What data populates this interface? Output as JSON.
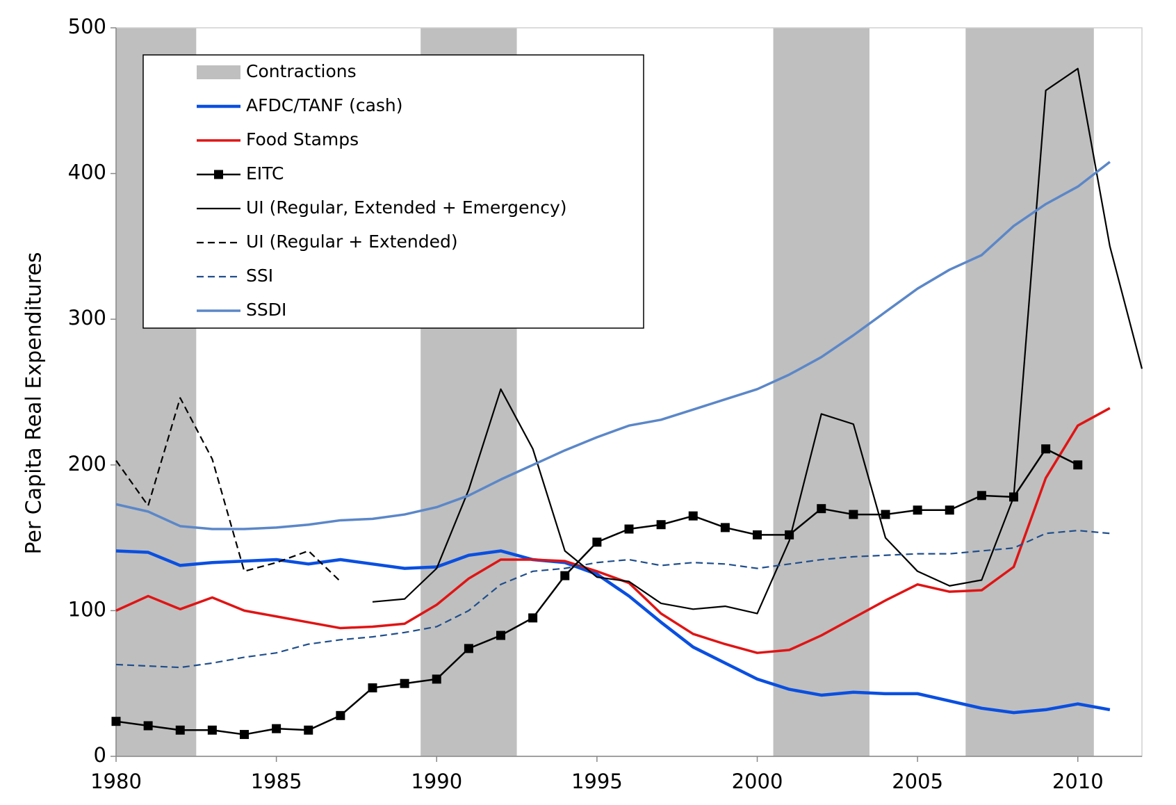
{
  "chart_data": {
    "type": "line",
    "y_label": "Per Capita Real Expenditures",
    "x": [
      1980,
      1981,
      1982,
      1983,
      1984,
      1985,
      1986,
      1987,
      1988,
      1989,
      1990,
      1991,
      1992,
      1993,
      1994,
      1995,
      1996,
      1997,
      1998,
      1999,
      2000,
      2001,
      2002,
      2003,
      2004,
      2005,
      2006,
      2007,
      2008,
      2009,
      2010,
      2011,
      2012
    ],
    "xlim": [
      1980,
      2012
    ],
    "xticks": [
      1980,
      1985,
      1990,
      1995,
      2000,
      2005,
      2010
    ],
    "ylim": [
      0,
      500
    ],
    "yticks": [
      0,
      100,
      200,
      300,
      400,
      500
    ],
    "contractions": {
      "name": "Contractions",
      "color": "#bfbfbf",
      "ranges": [
        [
          1980,
          1982.5
        ],
        [
          1989.5,
          1992.5
        ],
        [
          2000.5,
          2003.5
        ],
        [
          2006.5,
          2010.5
        ]
      ]
    },
    "series": [
      {
        "name": "AFDC/TANF (cash)",
        "color": "#0a4fe0",
        "style": "solid",
        "values": [
          141,
          140,
          131,
          133,
          134,
          135,
          132,
          135,
          132,
          129,
          130,
          138,
          141,
          135,
          133,
          125,
          110,
          92,
          75,
          64,
          53,
          46,
          42,
          44,
          43,
          43,
          38,
          33,
          30,
          32,
          36,
          32,
          null
        ]
      },
      {
        "name": "Food Stamps",
        "color": "#e01414",
        "style": "solid",
        "values": [
          100,
          110,
          101,
          109,
          100,
          96,
          92,
          88,
          89,
          91,
          104,
          122,
          135,
          135,
          134,
          127,
          119,
          98,
          84,
          77,
          71,
          73,
          83,
          95,
          107,
          118,
          113,
          114,
          130,
          191,
          227,
          239,
          null
        ]
      },
      {
        "name": "EITC",
        "color": "#000000",
        "style": "solid",
        "marker": "square",
        "values": [
          24,
          21,
          18,
          18,
          15,
          19,
          18,
          28,
          47,
          50,
          53,
          74,
          83,
          95,
          124,
          147,
          156,
          159,
          165,
          157,
          152,
          152,
          170,
          166,
          166,
          169,
          169,
          179,
          178,
          211,
          200,
          null,
          null
        ]
      },
      {
        "name": "UI (Regular, Extended + Emergency)",
        "color": "#000000",
        "style": "solid",
        "values": [
          null,
          null,
          null,
          null,
          null,
          null,
          null,
          null,
          106,
          108,
          129,
          183,
          252,
          211,
          141,
          123,
          120,
          105,
          101,
          103,
          98,
          148,
          235,
          228,
          150,
          127,
          117,
          121,
          178,
          457,
          472,
          350,
          266
        ]
      },
      {
        "name": "UI (Regular + Extended)",
        "color": "#000000",
        "style": "dashed",
        "values": [
          203,
          172,
          246,
          204,
          127,
          133,
          141,
          120,
          null,
          null,
          null,
          null,
          null,
          null,
          null,
          null,
          null,
          null,
          null,
          null,
          null,
          null,
          null,
          null,
          null,
          null,
          null,
          null,
          null,
          null,
          null,
          null,
          null
        ]
      },
      {
        "name": "SSI",
        "color": "#1f4e8c",
        "style": "dashed",
        "values": [
          63,
          62,
          61,
          64,
          68,
          71,
          77,
          80,
          82,
          85,
          89,
          100,
          118,
          127,
          129,
          133,
          135,
          131,
          133,
          132,
          129,
          132,
          135,
          137,
          138,
          139,
          139,
          141,
          143,
          153,
          155,
          153,
          null
        ]
      },
      {
        "name": "SSDI",
        "color": "#5b87c8",
        "style": "solid",
        "values": [
          173,
          168,
          158,
          156,
          156,
          157,
          159,
          162,
          163,
          166,
          171,
          179,
          190,
          200,
          210,
          219,
          227,
          231,
          238,
          245,
          252,
          262,
          274,
          289,
          305,
          321,
          334,
          344,
          364,
          379,
          391,
          408,
          null
        ]
      }
    ]
  }
}
